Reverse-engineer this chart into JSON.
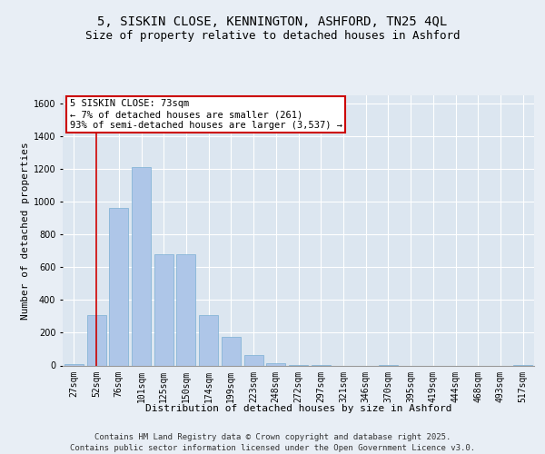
{
  "title_line1": "5, SISKIN CLOSE, KENNINGTON, ASHFORD, TN25 4QL",
  "title_line2": "Size of property relative to detached houses in Ashford",
  "xlabel": "Distribution of detached houses by size in Ashford",
  "ylabel": "Number of detached properties",
  "categories": [
    "27sqm",
    "52sqm",
    "76sqm",
    "101sqm",
    "125sqm",
    "150sqm",
    "174sqm",
    "199sqm",
    "223sqm",
    "248sqm",
    "272sqm",
    "297sqm",
    "321sqm",
    "346sqm",
    "370sqm",
    "395sqm",
    "419sqm",
    "444sqm",
    "468sqm",
    "493sqm",
    "517sqm"
  ],
  "values": [
    10,
    310,
    960,
    1210,
    680,
    680,
    310,
    175,
    65,
    15,
    5,
    5,
    0,
    0,
    5,
    0,
    0,
    0,
    0,
    0,
    5
  ],
  "bar_color": "#aec6e8",
  "bar_edge_color": "#7aafd4",
  "vline_x": 1,
  "vline_color": "#cc0000",
  "annotation_text": "5 SISKIN CLOSE: 73sqm\n← 7% of detached houses are smaller (261)\n93% of semi-detached houses are larger (3,537) →",
  "annotation_box_color": "#ffffff",
  "annotation_box_edge": "#cc0000",
  "ylim": [
    0,
    1650
  ],
  "yticks": [
    0,
    200,
    400,
    600,
    800,
    1000,
    1200,
    1400,
    1600
  ],
  "background_color": "#e8eef5",
  "plot_background": "#dce6f0",
  "footer": "Contains HM Land Registry data © Crown copyright and database right 2025.\nContains public sector information licensed under the Open Government Licence v3.0.",
  "title_fontsize": 10,
  "title2_fontsize": 9,
  "axis_label_fontsize": 8,
  "tick_fontsize": 7,
  "footer_fontsize": 6.5,
  "annot_fontsize": 7.5
}
